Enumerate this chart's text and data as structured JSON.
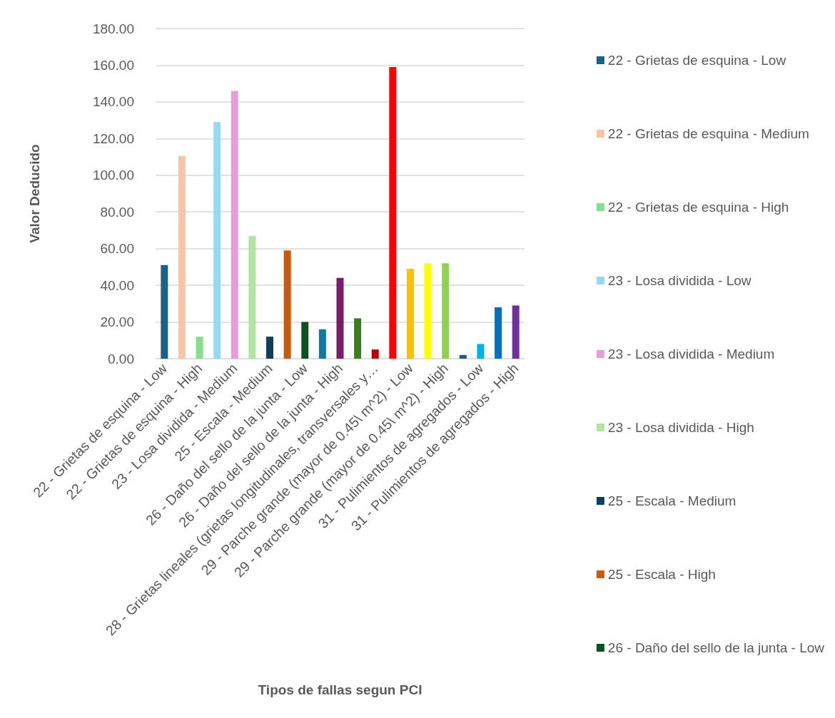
{
  "chart_data": {
    "type": "bar",
    "xlabel": "Tipos de fallas segun PCI",
    "ylabel": "Valor Deducido",
    "categories": [
      "22 - Grietas de esquina - Low",
      null,
      "22 - Grietas de esquina - High",
      null,
      "23 - Losa dividida - Medium",
      null,
      "25 - Escala - Medium",
      null,
      "26 - Daño del sello de la junta - Low",
      null,
      "26 - Daño del sello de la junta - High",
      null,
      "28 - Grietas lineales (grietas longitudinales, transversales y…",
      null,
      "29 - Parche grande (mayor de 0.45\\ m^2) - Low",
      null,
      "29 - Parche grande (mayor de 0.45\\ m^2) - High",
      null,
      "31 - Pulimientos de agregados - Low",
      null,
      "31 - Pulimientos de agregados - High"
    ],
    "series": [
      {
        "name": "22 - Grietas de esquina - Low",
        "color": "#1b6185",
        "values": [
          51,
          null,
          null,
          null,
          null,
          null,
          null,
          null,
          null,
          null,
          null,
          null,
          null,
          null,
          null,
          null,
          null,
          null,
          null,
          null,
          null
        ]
      },
      {
        "name": "22 - Grietas de esquina - Medium",
        "color": "#f7c6a9",
        "values": [
          null,
          110.5,
          null,
          null,
          null,
          null,
          null,
          null,
          null,
          null,
          null,
          null,
          null,
          null,
          null,
          null,
          null,
          null,
          null,
          null,
          null
        ]
      },
      {
        "name": "22 - Grietas de esquina - High",
        "color": "#84e08e",
        "values": [
          null,
          null,
          12,
          null,
          null,
          null,
          null,
          null,
          null,
          null,
          null,
          null,
          null,
          null,
          null,
          null,
          null,
          null,
          null,
          null,
          null
        ]
      },
      {
        "name": "23 - Losa dividida - Low",
        "color": "#95d9f3",
        "values": [
          null,
          null,
          null,
          129,
          null,
          null,
          null,
          null,
          null,
          null,
          null,
          null,
          null,
          null,
          null,
          null,
          null,
          null,
          null,
          null,
          null
        ]
      },
      {
        "name": "23 - Losa dividida - Medium",
        "color": "#e49edd",
        "values": [
          null,
          null,
          null,
          null,
          146,
          null,
          null,
          null,
          null,
          null,
          null,
          null,
          null,
          null,
          null,
          null,
          null,
          null,
          null,
          null,
          null
        ]
      },
      {
        "name": "23 - Losa dividida - High",
        "color": "#b2e5a0",
        "values": [
          null,
          null,
          null,
          null,
          null,
          67,
          null,
          null,
          null,
          null,
          null,
          null,
          null,
          null,
          null,
          null,
          null,
          null,
          null,
          null,
          null
        ]
      },
      {
        "name": "25 - Escala - Medium",
        "color": "#0e3f5c",
        "values": [
          null,
          null,
          null,
          null,
          null,
          null,
          12,
          null,
          null,
          null,
          null,
          null,
          null,
          null,
          null,
          null,
          null,
          null,
          null,
          null,
          null
        ]
      },
      {
        "name": "25 - Escala - High",
        "color": "#c55a11",
        "values": [
          null,
          null,
          null,
          null,
          null,
          null,
          null,
          59,
          null,
          null,
          null,
          null,
          null,
          null,
          null,
          null,
          null,
          null,
          null,
          null,
          null
        ]
      },
      {
        "name": "26 - Daño del sello de la junta - Low",
        "color": "#0f5020",
        "values": [
          null,
          null,
          null,
          null,
          null,
          null,
          null,
          null,
          20,
          null,
          null,
          null,
          null,
          null,
          null,
          null,
          null,
          null,
          null,
          null,
          null
        ]
      },
      {
        "color": "#1279a3",
        "values": [
          null,
          null,
          null,
          null,
          null,
          null,
          null,
          null,
          null,
          16,
          null,
          null,
          null,
          null,
          null,
          null,
          null,
          null,
          null,
          null,
          null
        ]
      },
      {
        "color": "#7a1a6b",
        "values": [
          null,
          null,
          null,
          null,
          null,
          null,
          null,
          null,
          null,
          null,
          44,
          null,
          null,
          null,
          null,
          null,
          null,
          null,
          null,
          null,
          null
        ]
      },
      {
        "color": "#3c7d22",
        "values": [
          null,
          null,
          null,
          null,
          null,
          null,
          null,
          null,
          null,
          null,
          null,
          22,
          null,
          null,
          null,
          null,
          null,
          null,
          null,
          null,
          null
        ]
      },
      {
        "color": "#c00000",
        "values": [
          null,
          null,
          null,
          null,
          null,
          null,
          null,
          null,
          null,
          null,
          null,
          null,
          5,
          null,
          null,
          null,
          null,
          null,
          null,
          null,
          null
        ]
      },
      {
        "color": "#ff0000",
        "values": [
          null,
          null,
          null,
          null,
          null,
          null,
          null,
          null,
          null,
          null,
          null,
          null,
          null,
          159,
          null,
          null,
          null,
          null,
          null,
          null,
          null
        ]
      },
      {
        "color": "#ffc000",
        "values": [
          null,
          null,
          null,
          null,
          null,
          null,
          null,
          null,
          null,
          null,
          null,
          null,
          null,
          null,
          49,
          null,
          null,
          null,
          null,
          null,
          null
        ]
      },
      {
        "color": "#ffff00",
        "values": [
          null,
          null,
          null,
          null,
          null,
          null,
          null,
          null,
          null,
          null,
          null,
          null,
          null,
          null,
          null,
          52,
          null,
          null,
          null,
          null,
          null
        ]
      },
      {
        "color": "#92d050",
        "values": [
          null,
          null,
          null,
          null,
          null,
          null,
          null,
          null,
          null,
          null,
          null,
          null,
          null,
          null,
          null,
          null,
          52,
          null,
          null,
          null,
          null
        ]
      },
      {
        "color": "#1b5e80",
        "values": [
          null,
          null,
          null,
          null,
          null,
          null,
          null,
          null,
          null,
          null,
          null,
          null,
          null,
          null,
          null,
          null,
          null,
          2,
          null,
          null,
          null
        ]
      },
      {
        "color": "#00b0f0",
        "values": [
          null,
          null,
          null,
          null,
          null,
          null,
          null,
          null,
          null,
          null,
          null,
          null,
          null,
          null,
          null,
          null,
          null,
          null,
          8,
          null,
          null
        ]
      },
      {
        "color": "#0070c0",
        "values": [
          null,
          null,
          null,
          null,
          null,
          null,
          null,
          null,
          null,
          null,
          null,
          null,
          null,
          null,
          null,
          null,
          null,
          null,
          null,
          28,
          null
        ]
      },
      {
        "color": "#7030a0",
        "values": [
          null,
          null,
          null,
          null,
          null,
          null,
          null,
          null,
          null,
          null,
          null,
          null,
          null,
          null,
          null,
          null,
          null,
          null,
          null,
          null,
          29
        ]
      }
    ],
    "ylim": [
      0,
      180
    ],
    "yticks": [
      {
        "value": 0,
        "label": "0.00"
      },
      {
        "value": 20,
        "label": "20.00"
      },
      {
        "value": 40,
        "label": "40.00"
      },
      {
        "value": 60,
        "label": "60.00"
      },
      {
        "value": 80,
        "label": "80.00"
      },
      {
        "value": 100,
        "label": "100.00"
      },
      {
        "value": 120,
        "label": "120.00"
      },
      {
        "value": 140,
        "label": "140.00"
      },
      {
        "value": 160,
        "label": "160.00"
      },
      {
        "value": 180,
        "label": "180.00"
      }
    ],
    "grid": "y",
    "legend": "right"
  }
}
